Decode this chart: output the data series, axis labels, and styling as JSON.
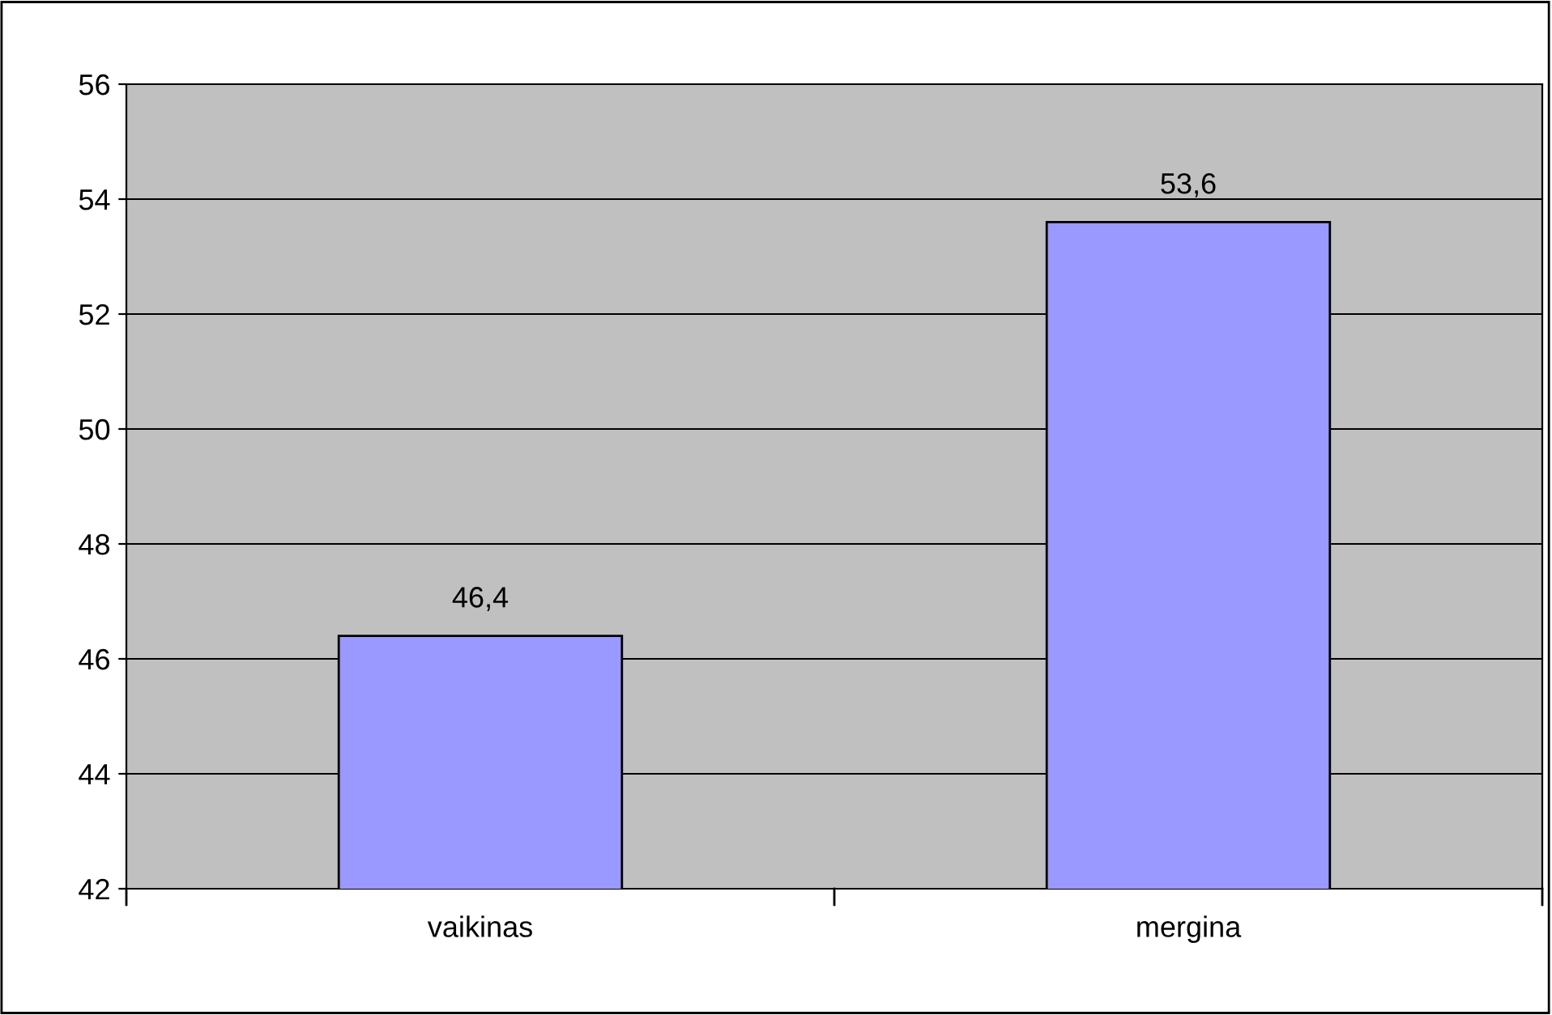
{
  "chart_data": {
    "type": "bar",
    "categories": [
      "vaikinas",
      "mergina"
    ],
    "values": [
      46.4,
      53.6
    ],
    "color": "#9999ff",
    "value_labels": [
      "46,4",
      "53,6"
    ],
    "ylim": [
      42,
      56
    ],
    "yticks": [
      42,
      44,
      46,
      48,
      50,
      52,
      54,
      56
    ],
    "grid": "y",
    "legend": false
  }
}
